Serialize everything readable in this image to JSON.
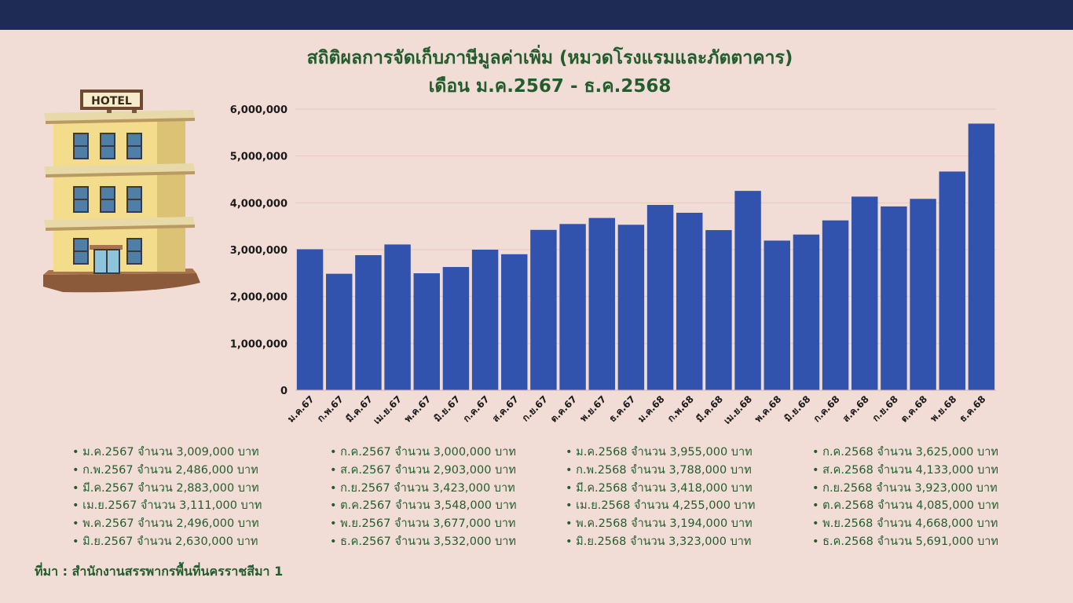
{
  "chart_data": {
    "type": "bar",
    "title": "สถิติผลการจัดเก็บภาษีมูลค่าเพิ่ม (หมวดโรงแรมและภัตตาคาร)",
    "subtitle": "เดือน ม.ค.2567 - ธ.ค.2568",
    "categories": [
      "ม.ค.67",
      "ก.พ.67",
      "มี.ค.67",
      "เม.ย.67",
      "พ.ค.67",
      "มิ.ย.67",
      "ก.ค.67",
      "ส.ค.67",
      "ก.ย.67",
      "ต.ค.67",
      "พ.ย.67",
      "ธ.ค.67",
      "ม.ค.68",
      "ก.พ.68",
      "มี.ค.68",
      "เม.ย.68",
      "พ.ค.68",
      "มิ.ย.68",
      "ก.ค.68",
      "ส.ค.68",
      "ก.ย.68",
      "ต.ค.68",
      "พ.ย.68",
      "ธ.ค.68"
    ],
    "values": [
      3009000,
      2486000,
      2883000,
      3111000,
      2496000,
      2630000,
      3000000,
      2903000,
      3423000,
      3548000,
      3677000,
      3532000,
      3955000,
      3788000,
      3418000,
      4255000,
      3194000,
      3323000,
      3625000,
      4133000,
      3923000,
      4085000,
      4668000,
      5691000
    ],
    "yticks": [
      "0",
      "1,000,000",
      "2,000,000",
      "3,000,000",
      "4,000,000",
      "5,000,000",
      "6,000,000"
    ],
    "ylim": [
      0,
      6000000
    ],
    "bar_color": "#3253ad",
    "grid": true
  },
  "hotel_sign": "HOTEL",
  "legend": {
    "columns": [
      [
        "ม.ค.2567  จำนวน 3,009,000 บาท",
        "ก.พ.2567  จำนวน 2,486,000 บาท",
        "มี.ค.2567  จำนวน 2,883,000 บาท",
        "เม.ย.2567 จำนวน 3,111,000   บาท",
        "พ.ค.2567  จำนวน 2,496,000 บาท",
        "มิ.ย.2567  จำนวน 2,630,000 บาท"
      ],
      [
        "ก.ค.2567 จำนวน 3,000,000 บาท",
        "ส.ค.2567 จำนวน 2,903,000 บาท",
        "ก.ย.2567 จำนวน 3,423,000 บาท",
        "ต.ค.2567 จำนวน 3,548,000 บาท",
        "พ.ย.2567 จำนวน 3,677,000 บาท",
        "ธ.ค.2567 จำนวน 3,532,000 บาท"
      ],
      [
        "ม.ค.2568  จำนวน 3,955,000 บาท",
        "ก.พ.2568  จำนวน 3,788,000 บาท",
        "มี.ค.2568  จำนวน 3,418,000 บาท",
        "เม.ย.2568 จำนวน 4,255,000 บาท",
        "พ.ค.2568 จำนวน  3,194,000 บาท",
        "มิ.ย.2568 จำนวน  3,323,000 บาท"
      ],
      [
        "ก.ค.2568 จำนวน 3,625,000 บาท",
        "ส.ค.2568 จำนวน 4,133,000  บาท",
        "ก.ย.2568 จำนวน 3,923,000  บาท",
        "ต.ค.2568 จำนวน 4,085,000 บาท",
        "พ.ย.2568 จำนวน 4,668,000 บาท",
        "ธ.ค.2568 จำนวน  5,691,000 บาท"
      ]
    ]
  },
  "source": "ที่มา : สำนักงานสรรพากรพื้นที่นครราชสีมา 1",
  "colors": {
    "title": "#235d2e",
    "topbar": "#1d2b55",
    "background": "#f2ddd6"
  }
}
